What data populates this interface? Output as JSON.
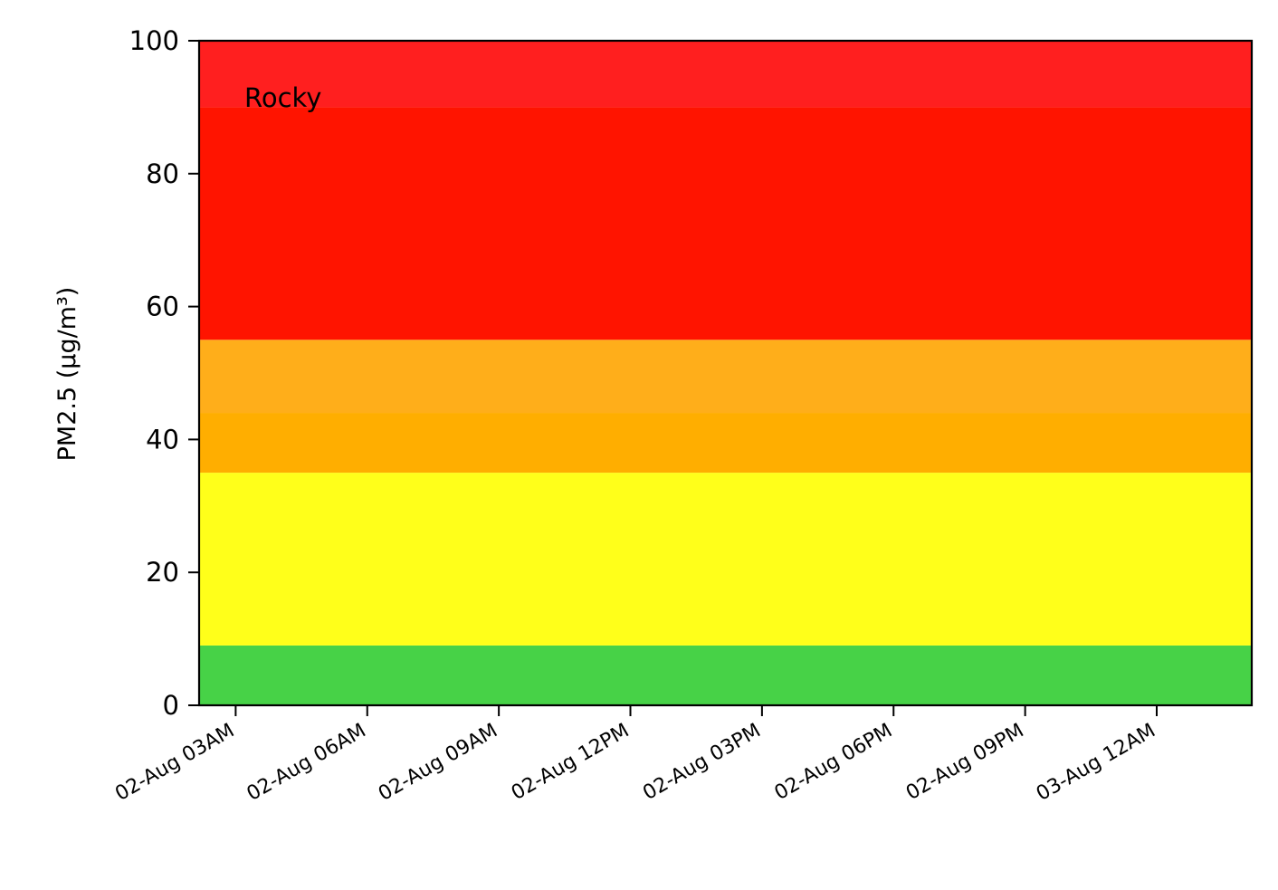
{
  "chart_data": {
    "type": "area",
    "title": "",
    "annotation": "Rocky",
    "ylabel": "PM2.5 (µg/m³)",
    "xlabel": "",
    "ylim": [
      0,
      100
    ],
    "xlim": [
      "2025-08-02T02:10",
      "2025-08-03T02:10"
    ],
    "grid": false,
    "y_ticks": [
      {
        "value": 0,
        "label": "0"
      },
      {
        "value": 20,
        "label": "20"
      },
      {
        "value": 40,
        "label": "40"
      },
      {
        "value": 60,
        "label": "60"
      },
      {
        "value": 80,
        "label": "80"
      },
      {
        "value": 100,
        "label": "100"
      }
    ],
    "x_ticks": [
      {
        "value": "2025-08-02T03:00",
        "label": "02-Aug 03AM"
      },
      {
        "value": "2025-08-02T06:00",
        "label": "02-Aug 06AM"
      },
      {
        "value": "2025-08-02T09:00",
        "label": "02-Aug 09AM"
      },
      {
        "value": "2025-08-02T12:00",
        "label": "02-Aug 12PM"
      },
      {
        "value": "2025-08-02T15:00",
        "label": "02-Aug 03PM"
      },
      {
        "value": "2025-08-02T18:00",
        "label": "02-Aug 06PM"
      },
      {
        "value": "2025-08-02T21:00",
        "label": "02-Aug 09PM"
      },
      {
        "value": "2025-08-03T00:00",
        "label": "03-Aug 12AM"
      }
    ],
    "bands": [
      {
        "from": 0,
        "to": 9,
        "color": "#47d247"
      },
      {
        "from": 9,
        "to": 35,
        "color": "#ffff1a"
      },
      {
        "from": 35,
        "to": 44,
        "color": "#ffae00"
      },
      {
        "from": 44,
        "to": 55,
        "color": "#ffae1a"
      },
      {
        "from": 55,
        "to": 90,
        "color": "#ff1400"
      },
      {
        "from": 90,
        "to": 100,
        "color": "#ff1f1f"
      }
    ]
  }
}
